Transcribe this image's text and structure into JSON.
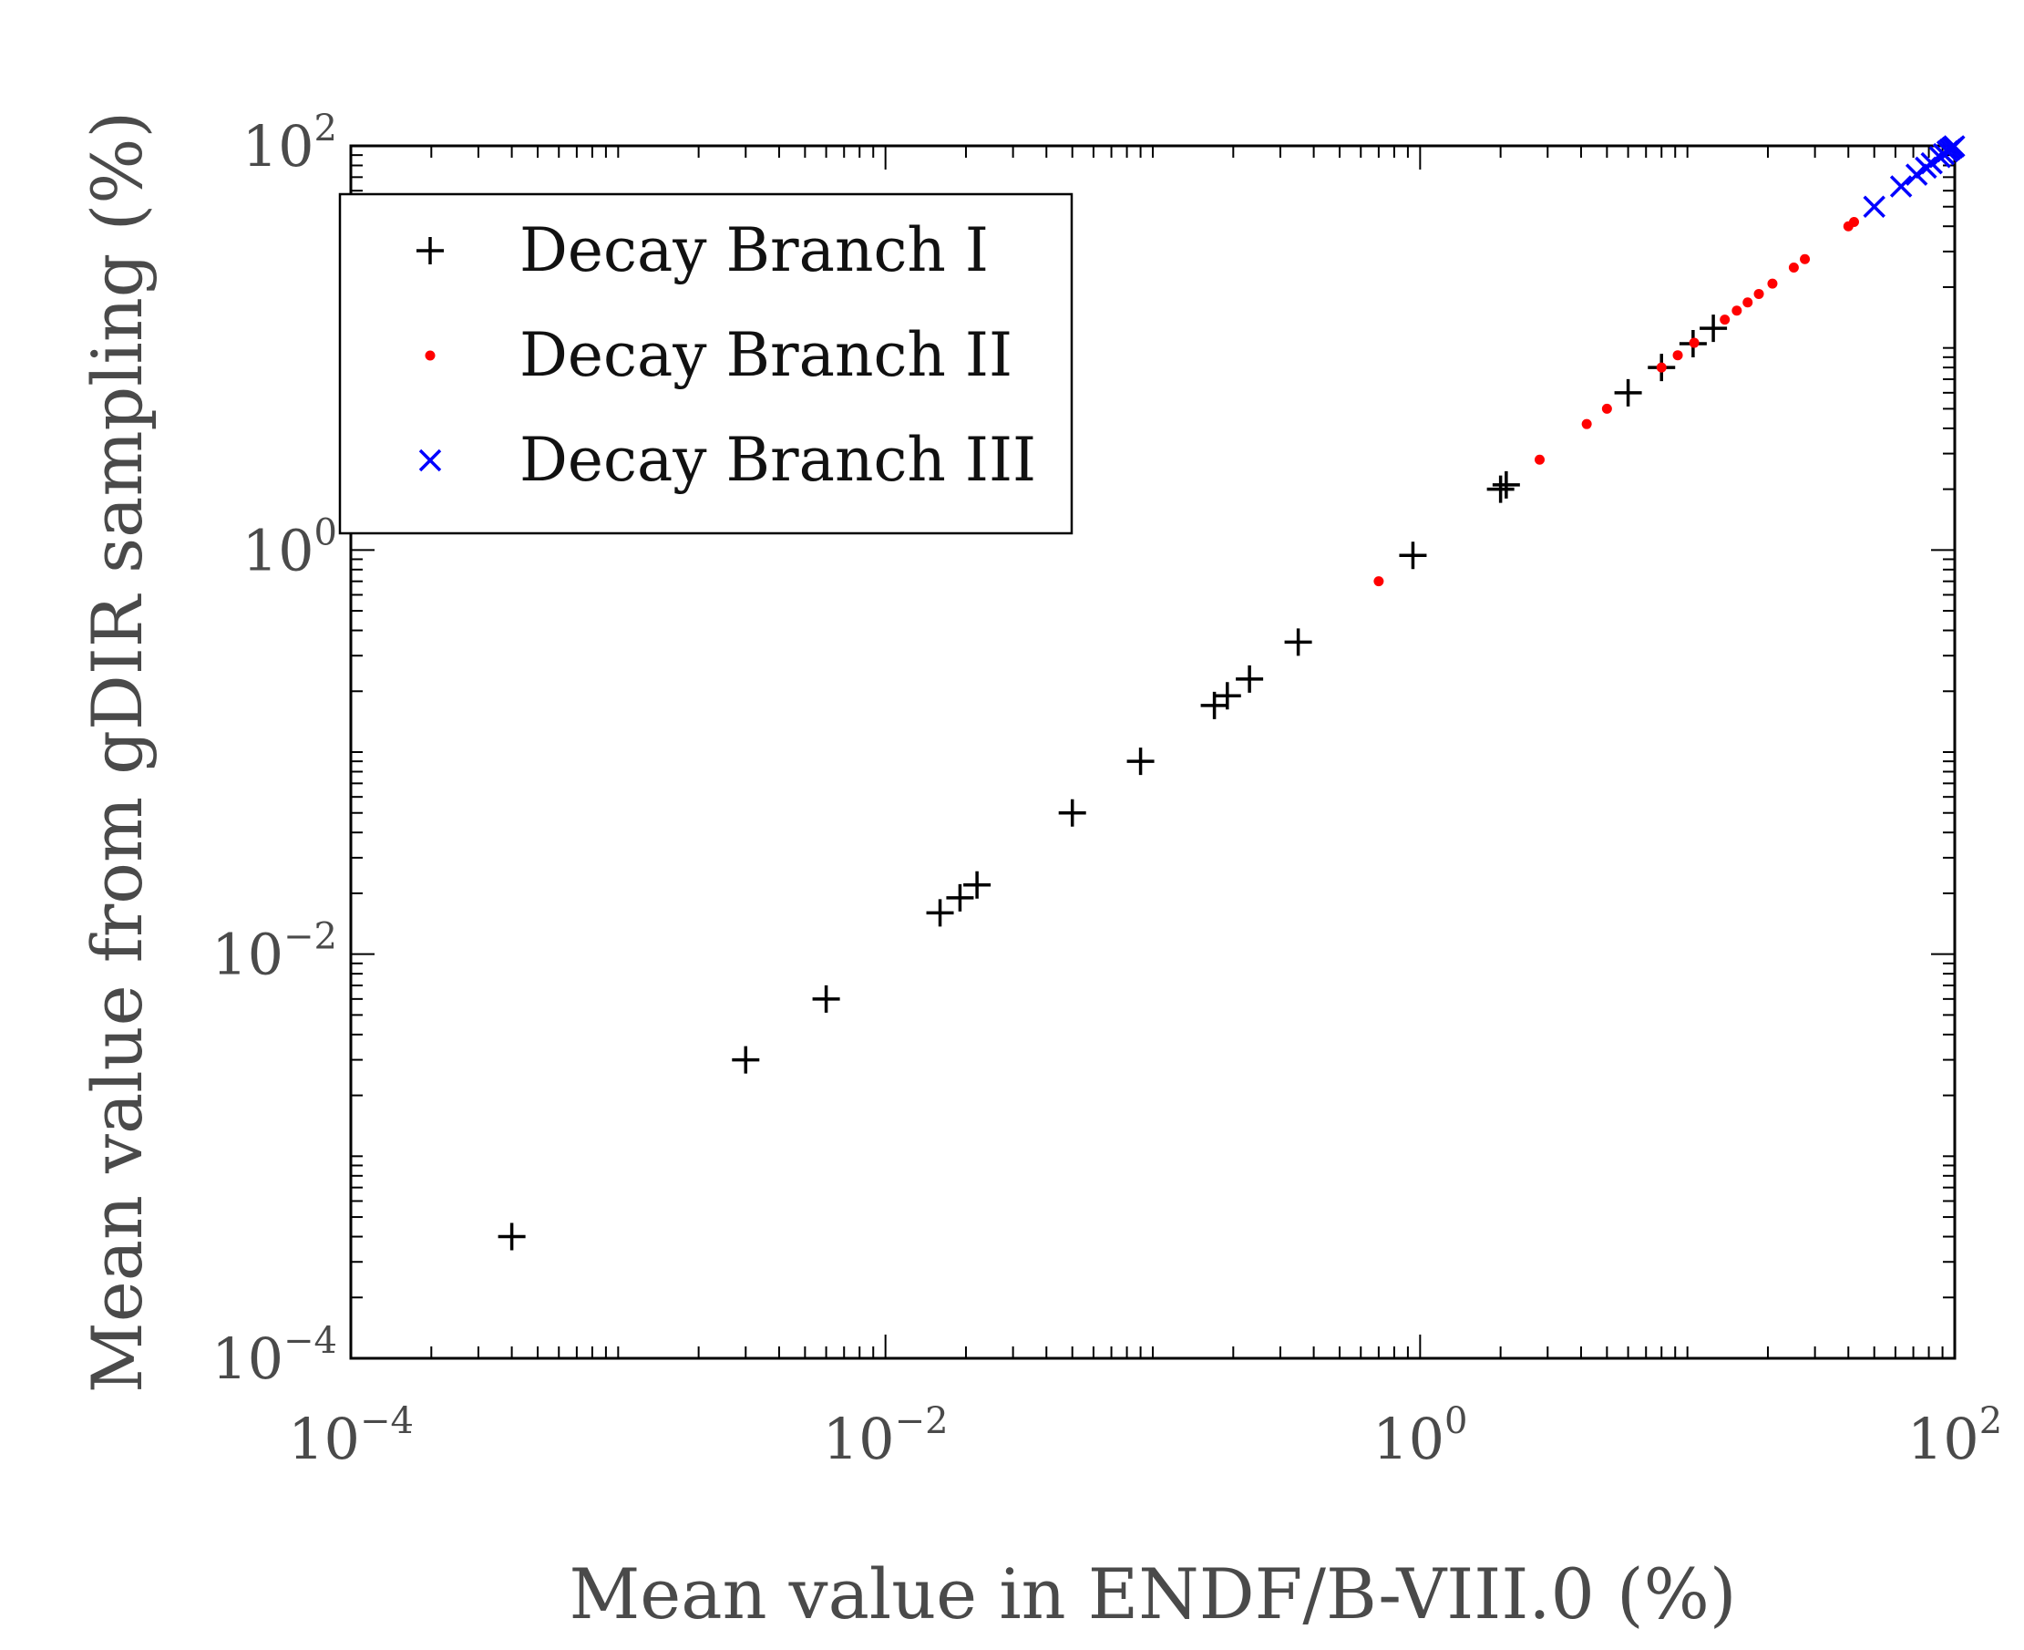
{
  "chart_data": {
    "type": "scatter",
    "x_scale": "log",
    "y_scale": "log",
    "xlabel": "Mean value in ENDF/B-VIII.0 (%)",
    "ylabel": "Mean value from gDIR sampling (%)",
    "xlim": [
      0.0001,
      100
    ],
    "ylim": [
      0.0001,
      100
    ],
    "x_ticks": [
      {
        "base": "10",
        "exp": "−4",
        "value": 0.0001
      },
      {
        "base": "10",
        "exp": "−2",
        "value": 0.01
      },
      {
        "base": "10",
        "exp": "0",
        "value": 1
      },
      {
        "base": "10",
        "exp": "2",
        "value": 100
      }
    ],
    "y_ticks": [
      {
        "base": "10",
        "exp": "−4",
        "value": 0.0001
      },
      {
        "base": "10",
        "exp": "−2",
        "value": 0.01
      },
      {
        "base": "10",
        "exp": "0",
        "value": 1
      },
      {
        "base": "10",
        "exp": "2",
        "value": 100
      }
    ],
    "legend_position": "top-left",
    "series": [
      {
        "name": "Decay Branch I",
        "marker": "plus",
        "color": "#000000",
        "points": [
          [
            0.0004,
            0.0004
          ],
          [
            0.003,
            0.003
          ],
          [
            0.006,
            0.006
          ],
          [
            0.016,
            0.016
          ],
          [
            0.019,
            0.019
          ],
          [
            0.022,
            0.022
          ],
          [
            0.05,
            0.05
          ],
          [
            0.09,
            0.09
          ],
          [
            0.17,
            0.17
          ],
          [
            0.19,
            0.19
          ],
          [
            0.23,
            0.23
          ],
          [
            0.35,
            0.35
          ],
          [
            0.94,
            0.94
          ],
          [
            2.0,
            2.0
          ],
          [
            2.1,
            2.1
          ],
          [
            6.0,
            6.0
          ],
          [
            8.0,
            8.0
          ],
          [
            10.5,
            10.5
          ],
          [
            12.5,
            12.5
          ]
        ]
      },
      {
        "name": "Decay Branch II",
        "marker": "dot",
        "color": "#ff0000",
        "points": [
          [
            0.7,
            0.7
          ],
          [
            2.8,
            2.8
          ],
          [
            4.2,
            4.2
          ],
          [
            5.0,
            5.0
          ],
          [
            8.0,
            8.0
          ],
          [
            9.2,
            9.2
          ],
          [
            10.6,
            10.6
          ],
          [
            13.8,
            13.8
          ],
          [
            15.3,
            15.3
          ],
          [
            16.8,
            16.8
          ],
          [
            18.5,
            18.5
          ],
          [
            20.8,
            20.8
          ],
          [
            25.0,
            25.0
          ],
          [
            27.5,
            27.5
          ],
          [
            40.0,
            40.0
          ],
          [
            42.0,
            42.0
          ]
        ]
      },
      {
        "name": "Decay Branch III",
        "marker": "x",
        "color": "#0000ff",
        "points": [
          [
            50,
            50
          ],
          [
            63,
            63
          ],
          [
            72,
            72
          ],
          [
            78,
            78
          ],
          [
            82,
            82
          ],
          [
            88,
            88
          ],
          [
            91,
            91
          ],
          [
            94,
            94
          ],
          [
            96,
            96
          ],
          [
            98,
            98
          ],
          [
            99.5,
            99.5
          ]
        ]
      }
    ]
  }
}
